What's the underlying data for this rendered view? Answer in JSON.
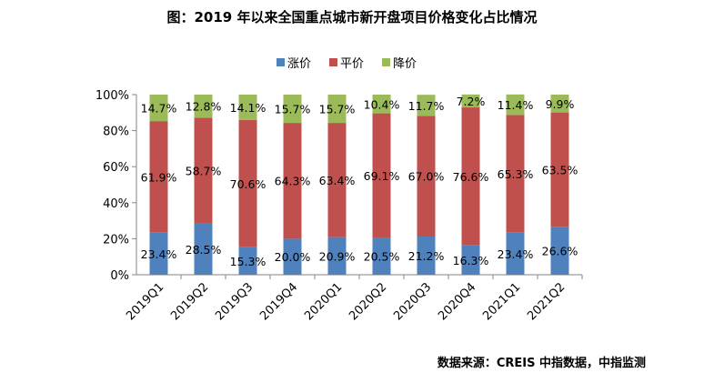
{
  "chart_data": {
    "type": "bar",
    "stacked": true,
    "title": "图：2019 年以来全国重点城市新开盘项目价格变化占比情况",
    "source": "数据来源：CREIS 中指数据，中指监测",
    "categories": [
      "2019Q1",
      "2019Q2",
      "2019Q3",
      "2019Q4",
      "2020Q1",
      "2020Q2",
      "2020Q3",
      "2020Q4",
      "2021Q1",
      "2021Q2"
    ],
    "series": [
      {
        "name": "涨价",
        "color": "#4F81BD",
        "values": [
          23.4,
          28.5,
          15.3,
          20.0,
          20.9,
          20.5,
          21.2,
          16.3,
          23.4,
          26.6
        ]
      },
      {
        "name": "平价",
        "color": "#C0504D",
        "values": [
          61.9,
          58.7,
          70.6,
          64.3,
          63.4,
          69.1,
          67.0,
          76.6,
          65.3,
          63.5
        ]
      },
      {
        "name": "降价",
        "color": "#9BBB59",
        "values": [
          14.7,
          12.8,
          14.1,
          15.7,
          15.7,
          10.4,
          11.7,
          7.2,
          11.4,
          9.9
        ]
      }
    ],
    "yticks": [
      "0%",
      "20%",
      "40%",
      "60%",
      "80%",
      "100%"
    ],
    "ylim": [
      0,
      100
    ],
    "legend": "top",
    "grid": false
  }
}
